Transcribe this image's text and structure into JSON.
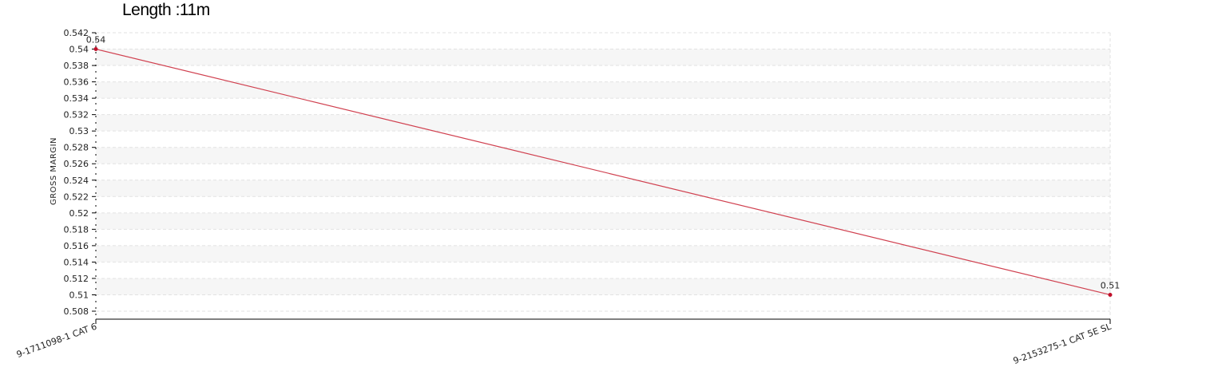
{
  "chart_data": {
    "type": "line",
    "title": "Length :11m",
    "xlabel": "",
    "ylabel": "GROSS MARGIN",
    "categories": [
      "9-1711098-1 CAT 6",
      "9-2153275-1  CAT 5E SL"
    ],
    "series": [
      {
        "values": [
          0.54,
          0.51
        ],
        "data_labels": [
          "0.54",
          "0.51"
        ]
      }
    ],
    "ylim": [
      0.508,
      0.542
    ],
    "yticks": [
      "0.508",
      "0.51",
      "0.512",
      "0.514",
      "0.516",
      "0.518",
      "0.52",
      "0.522",
      "0.524",
      "0.526",
      "0.528",
      "0.53",
      "0.532",
      "0.534",
      "0.536",
      "0.538",
      "0.54",
      "0.542"
    ],
    "grid": true,
    "colors": {
      "line": "#d0404f",
      "point": "#c0102a",
      "band": "#f6f6f6",
      "grid": "#e2e2e2",
      "axis": "#000000"
    }
  }
}
